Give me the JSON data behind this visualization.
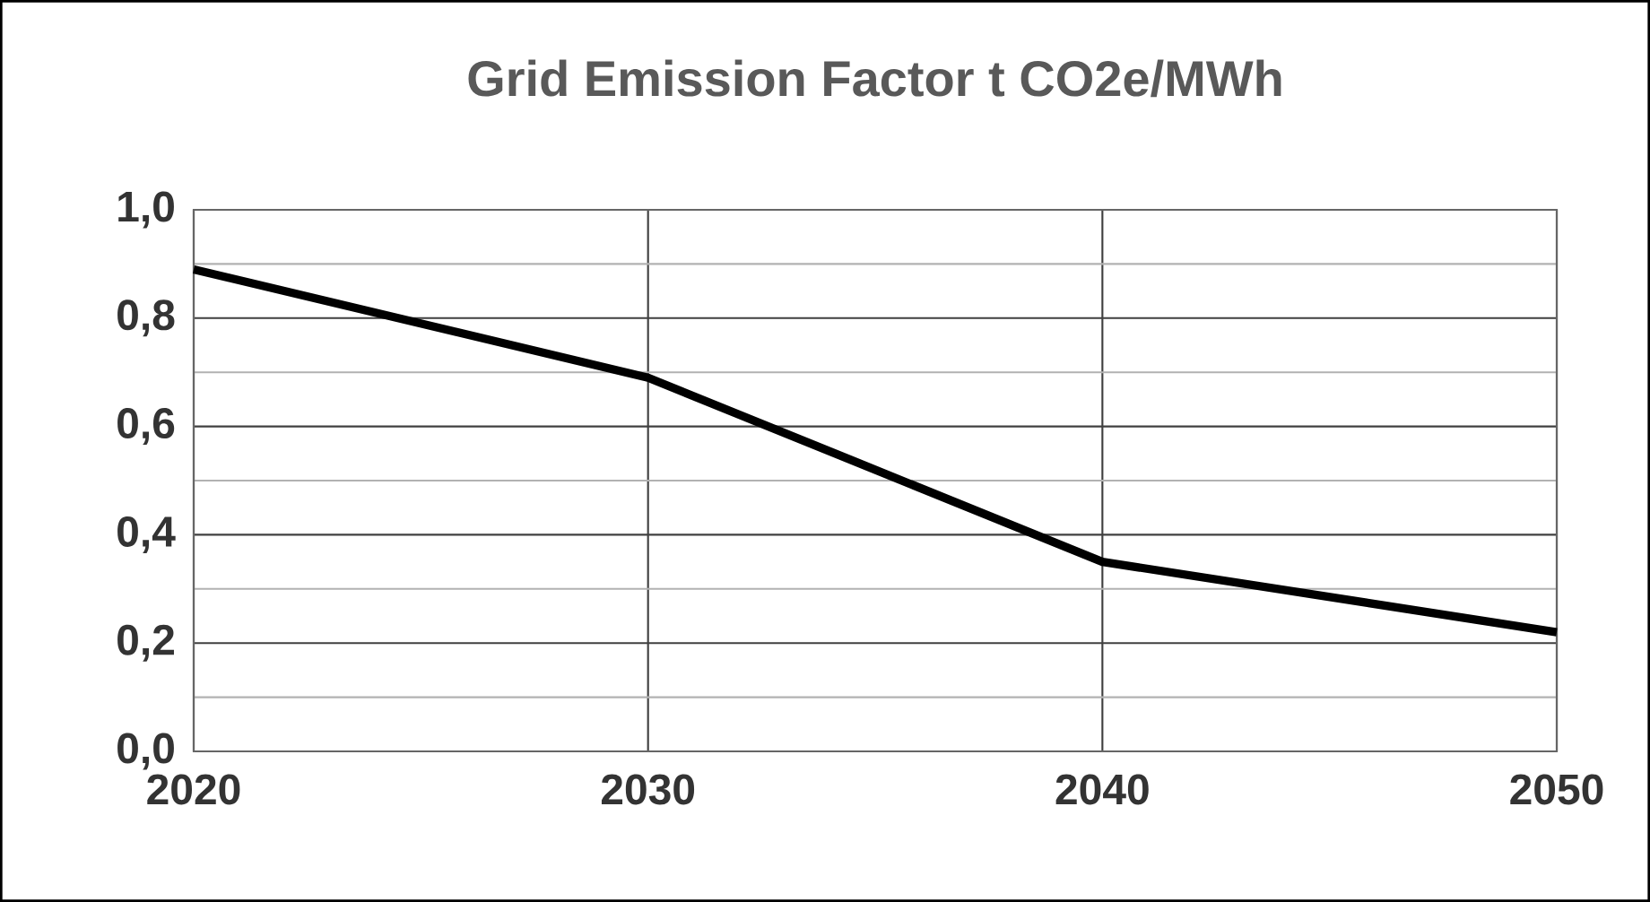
{
  "chart_data": {
    "type": "line",
    "title": "Grid Emission Factor t CO2e/MWh",
    "x": [
      2020,
      2030,
      2040,
      2050
    ],
    "series": [
      {
        "color": "#000000",
        "values": [
          0.89,
          0.69,
          0.35,
          0.22
        ]
      }
    ],
    "xlim": [
      2020,
      2050
    ],
    "xticks": [
      2020,
      2030,
      2040,
      2050
    ],
    "ylim": [
      0,
      1
    ],
    "yticks": [
      {
        "value": 0,
        "label": "0,0"
      },
      {
        "value": 0.2,
        "label": "0,2"
      },
      {
        "value": 0.4,
        "label": "0,4"
      },
      {
        "value": 0.6,
        "label": "0,6"
      },
      {
        "value": 0.8,
        "label": "0,8"
      },
      {
        "value": 1,
        "label": "1,0"
      }
    ],
    "grid": true,
    "line_style": "solid"
  }
}
